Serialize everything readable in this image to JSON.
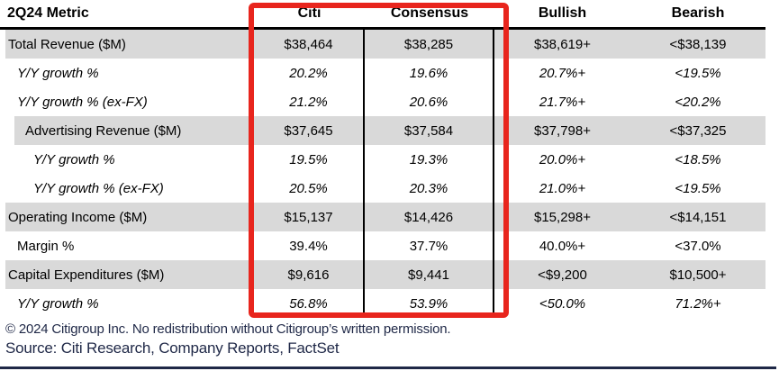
{
  "table": {
    "header": {
      "metric": "2Q24 Metric",
      "columns": [
        "Citi",
        "Consensus",
        "Bullish",
        "Bearish"
      ]
    },
    "rows": [
      {
        "metric": "Total Revenue ($M)",
        "citi": "$38,464",
        "consensus": "$38,285",
        "bullish": "$38,619+",
        "bearish": "<$38,139",
        "indent": 0,
        "italic": false,
        "shaded": true
      },
      {
        "metric": "Y/Y growth %",
        "citi": "20.2%",
        "consensus": "19.6%",
        "bullish": "20.7%+",
        "bearish": "<19.5%",
        "indent": 1,
        "italic": true,
        "shaded": false
      },
      {
        "metric": "Y/Y growth % (ex-FX)",
        "citi": "21.2%",
        "consensus": "20.6%",
        "bullish": "21.7%+",
        "bearish": "<20.2%",
        "indent": 1,
        "italic": true,
        "shaded": false
      },
      {
        "metric": "Advertising Revenue ($M)",
        "citi": "$37,645",
        "consensus": "$37,584",
        "bullish": "$37,798+",
        "bearish": "<$37,325",
        "indent": 2,
        "italic": false,
        "shaded": true
      },
      {
        "metric": "Y/Y growth %",
        "citi": "19.5%",
        "consensus": "19.3%",
        "bullish": "20.0%+",
        "bearish": "<18.5%",
        "indent": 3,
        "italic": true,
        "shaded": false
      },
      {
        "metric": "Y/Y growth % (ex-FX)",
        "citi": "20.5%",
        "consensus": "20.3%",
        "bullish": "21.0%+",
        "bearish": "<19.5%",
        "indent": 3,
        "italic": true,
        "shaded": false
      },
      {
        "metric": "Operating Income ($M)",
        "citi": "$15,137",
        "consensus": "$14,426",
        "bullish": "$15,298+",
        "bearish": "<$14,151",
        "indent": 0,
        "italic": false,
        "shaded": true
      },
      {
        "metric": "Margin %",
        "citi": "39.4%",
        "consensus": "37.7%",
        "bullish": "40.0%+",
        "bearish": "<37.0%",
        "indent": 1,
        "italic": false,
        "shaded": false
      },
      {
        "metric": "Capital Expenditures ($M)",
        "citi": "$9,616",
        "consensus": "$9,441",
        "bullish": "<$9,200",
        "bearish": "$10,500+",
        "indent": 0,
        "italic": false,
        "shaded": true
      },
      {
        "metric": "Y/Y growth %",
        "citi": "56.8%",
        "consensus": "53.9%",
        "bullish": "<50.0%",
        "bearish": "71.2%+",
        "indent": 1,
        "italic": true,
        "shaded": false
      }
    ]
  },
  "highlight": {
    "box_color": "#e8251d",
    "highlighted_columns": [
      "Citi",
      "Consensus"
    ]
  },
  "colors": {
    "shaded_row": "#d9d9d9",
    "footer_navy": "#1f2847",
    "text": "#000000"
  },
  "footer": {
    "copyright": "© 2024 Citigroup Inc. No redistribution without Citigroup’s written permission.",
    "source": "Source: Citi Research, Company Reports, FactSet"
  }
}
